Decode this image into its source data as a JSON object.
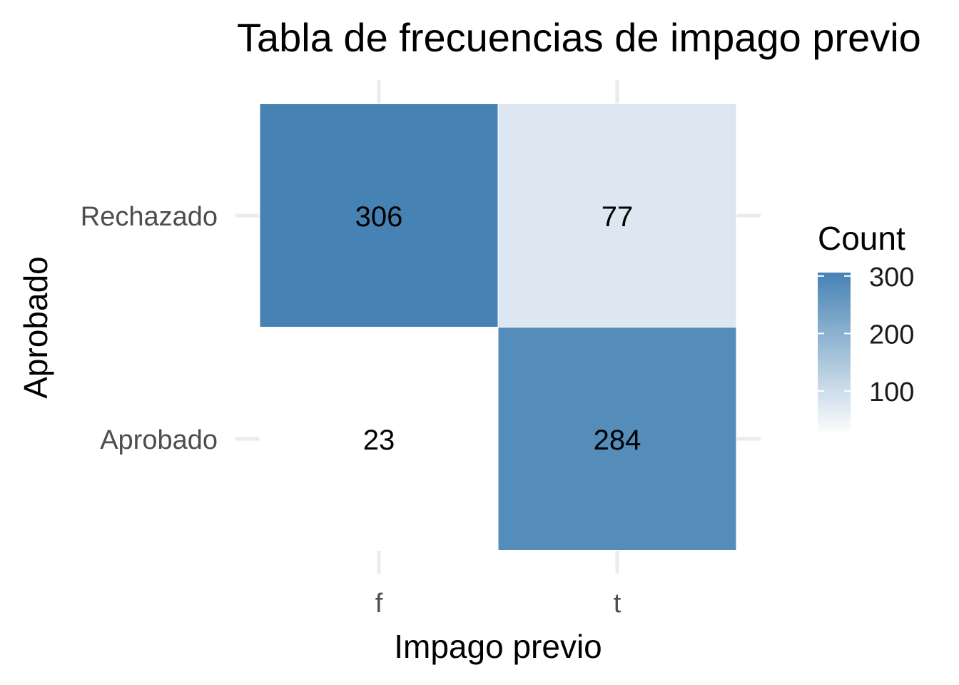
{
  "chart_data": {
    "type": "heatmap",
    "title": "Tabla de frecuencias de impago previo",
    "xlabel": "Impago previo",
    "ylabel": "Aprobado",
    "x_categories": [
      "f",
      "t"
    ],
    "y_categories": [
      "Rechazado",
      "Aprobado"
    ],
    "cells": [
      {
        "x": "f",
        "y": "Rechazado",
        "value": 306
      },
      {
        "x": "t",
        "y": "Rechazado",
        "value": 77
      },
      {
        "x": "f",
        "y": "Aprobado",
        "value": 23
      },
      {
        "x": "t",
        "y": "Aprobado",
        "value": 284
      }
    ],
    "legend": {
      "title": "Count",
      "ticks": [
        100,
        200,
        300
      ],
      "low_color": "#ffffff",
      "high_color": "#4682b4",
      "range": [
        23,
        306
      ],
      "placement": "right"
    },
    "grid": true
  }
}
